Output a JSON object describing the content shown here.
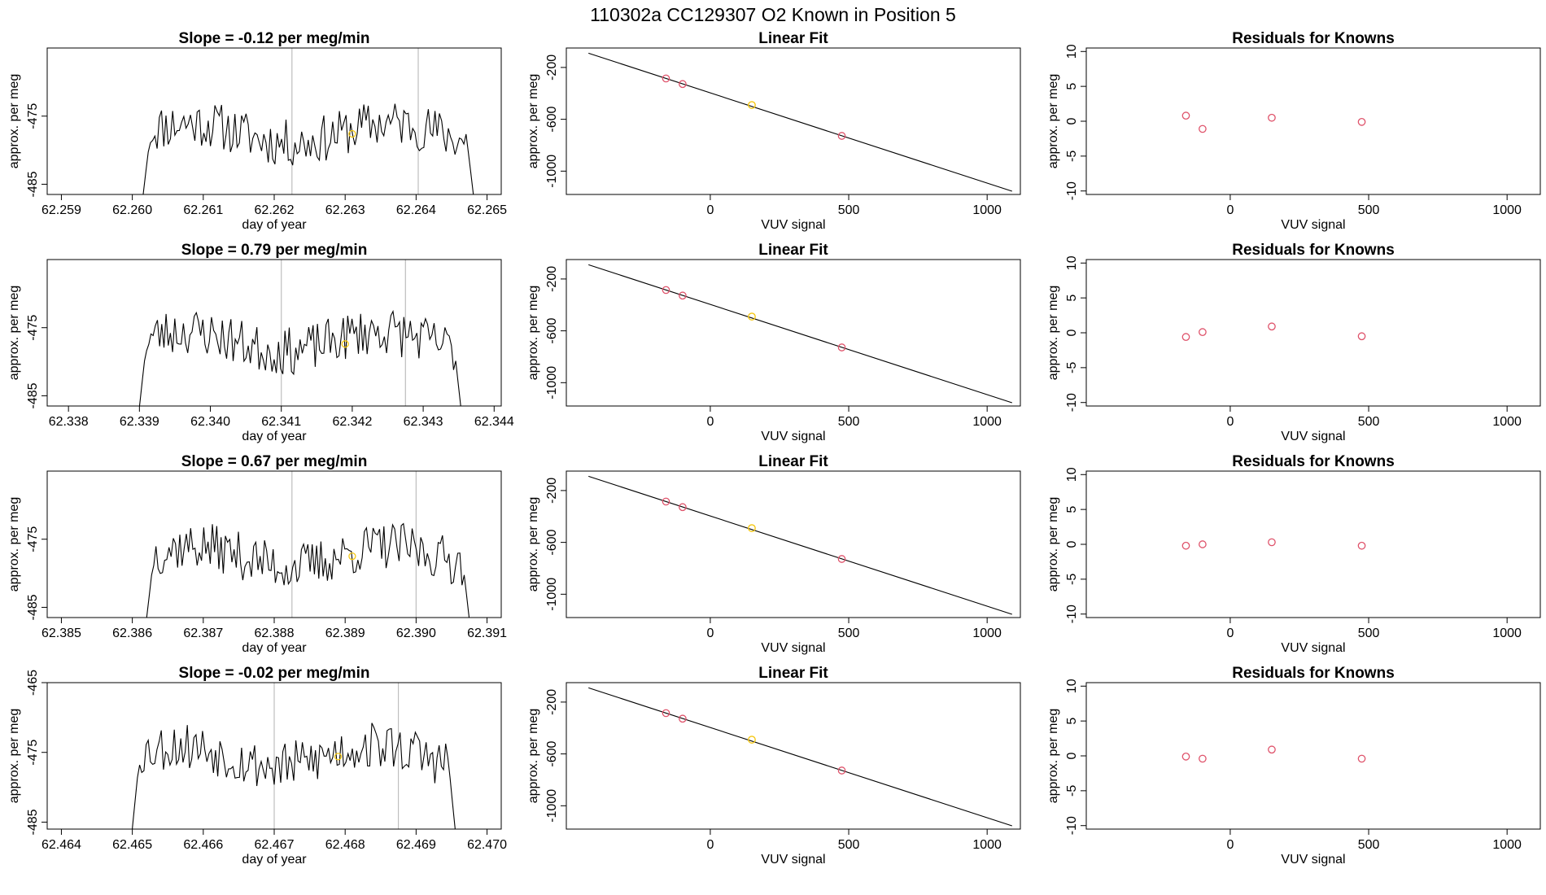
{
  "figure": {
    "title": "110302a      CC129307    O2 Known in Position  5"
  },
  "colors": {
    "line": "#000000",
    "frame": "#000000",
    "vline": "#bebebe",
    "known_point": "#df536b",
    "sample_point": "#f5c710"
  },
  "chart_data": [
    {
      "type": "line",
      "row": 1,
      "panel": "timeseries",
      "title": "Slope =  -0.12  per meg/min",
      "xlabel": "day of year",
      "ylabel": "approx. per meg",
      "xlim": [
        62.2588,
        62.2652
      ],
      "ylim": [
        -486.5,
        -465
      ],
      "xticks": [
        "62.259",
        "62.260",
        "62.261",
        "62.262",
        "62.263",
        "62.264",
        "62.265"
      ],
      "xtick_values": [
        62.259,
        62.26,
        62.261,
        62.262,
        62.263,
        62.264,
        62.265
      ],
      "yticks": [
        "-485",
        "-475"
      ],
      "ytick_values": [
        -485,
        -475
      ],
      "vlines": [
        62.26225,
        62.26403
      ],
      "series_window": [
        62.26013,
        62.26483
      ],
      "seed": 11,
      "level": -477.5,
      "marker": {
        "x": 62.2631,
        "y": -477.6
      }
    },
    {
      "type": "scatter",
      "row": 1,
      "panel": "fit",
      "title": "Linear Fit",
      "xlabel": "VUV signal",
      "ylabel": "approx. per meg",
      "xlim": [
        -520,
        1120
      ],
      "ylim": [
        -1180,
        -50
      ],
      "xticks": [
        "0",
        "500",
        "1000"
      ],
      "xtick_values": [
        0,
        500,
        1000
      ],
      "yticks": [
        "-1000",
        "-600",
        "-200"
      ],
      "ytick_values": [
        -1000,
        -600,
        -200
      ],
      "line": {
        "x": [
          -440,
          1090
        ],
        "y": [
          -90,
          -1155
        ]
      },
      "points": [
        {
          "x": -160,
          "y": -285
        },
        {
          "x": -100,
          "y": -328
        },
        {
          "x": 475,
          "y": -728
        }
      ],
      "sample": {
        "x": 150,
        "y": -490
      }
    },
    {
      "type": "scatter",
      "row": 1,
      "panel": "residuals",
      "title": "Residuals for Knowns",
      "xlabel": "VUV signal",
      "ylabel": "approx. per meg",
      "xlim": [
        -520,
        1120
      ],
      "ylim": [
        -10.5,
        10.5
      ],
      "xticks": [
        "0",
        "500",
        "1000"
      ],
      "xtick_values": [
        0,
        500,
        1000
      ],
      "yticks": [
        "-10",
        "-5",
        "0",
        "5",
        "10"
      ],
      "ytick_values": [
        -10,
        -5,
        0,
        5,
        10
      ],
      "points": [
        {
          "x": -160,
          "y": 0.8
        },
        {
          "x": -100,
          "y": -1.1
        },
        {
          "x": 150,
          "y": 0.5
        },
        {
          "x": 475,
          "y": -0.1
        }
      ]
    },
    {
      "type": "line",
      "row": 2,
      "panel": "timeseries",
      "title": "Slope =  0.79  per meg/min",
      "xlabel": "day of year",
      "ylabel": "approx. per meg",
      "xlim": [
        62.3377,
        62.3441
      ],
      "ylim": [
        -486.5,
        -465
      ],
      "xticks": [
        "62.338",
        "62.339",
        "62.340",
        "62.341",
        "62.342",
        "62.343",
        "62.344"
      ],
      "xtick_values": [
        62.338,
        62.339,
        62.34,
        62.341,
        62.342,
        62.343,
        62.344
      ],
      "yticks": [
        "-485",
        "-475"
      ],
      "ytick_values": [
        -485,
        -475
      ],
      "vlines": [
        62.341,
        62.34275
      ],
      "series_window": [
        62.33898,
        62.34355
      ],
      "seed": 23,
      "level": -477.0,
      "marker": {
        "x": 62.3419,
        "y": -477.4
      }
    },
    {
      "type": "scatter",
      "row": 2,
      "panel": "fit",
      "title": "Linear Fit",
      "xlabel": "VUV signal",
      "ylabel": "approx. per meg",
      "xlim": [
        -520,
        1120
      ],
      "ylim": [
        -1180,
        -50
      ],
      "xticks": [
        "0",
        "500",
        "1000"
      ],
      "xtick_values": [
        0,
        500,
        1000
      ],
      "yticks": [
        "-1000",
        "-600",
        "-200"
      ],
      "ytick_values": [
        -1000,
        -600,
        -200
      ],
      "line": {
        "x": [
          -440,
          1090
        ],
        "y": [
          -90,
          -1155
        ]
      },
      "points": [
        {
          "x": -160,
          "y": -285
        },
        {
          "x": -100,
          "y": -328
        },
        {
          "x": 475,
          "y": -728
        }
      ],
      "sample": {
        "x": 150,
        "y": -490
      }
    },
    {
      "type": "scatter",
      "row": 2,
      "panel": "residuals",
      "title": "Residuals for Knowns",
      "xlabel": "VUV signal",
      "ylabel": "approx. per meg",
      "xlim": [
        -520,
        1120
      ],
      "ylim": [
        -10.5,
        10.5
      ],
      "xticks": [
        "0",
        "500",
        "1000"
      ],
      "xtick_values": [
        0,
        500,
        1000
      ],
      "yticks": [
        "-10",
        "-5",
        "0",
        "5",
        "10"
      ],
      "ytick_values": [
        -10,
        -5,
        0,
        5,
        10
      ],
      "points": [
        {
          "x": -160,
          "y": -0.6
        },
        {
          "x": -100,
          "y": 0.1
        },
        {
          "x": 150,
          "y": 0.9
        },
        {
          "x": 475,
          "y": -0.5
        }
      ]
    },
    {
      "type": "line",
      "row": 3,
      "panel": "timeseries",
      "title": "Slope =  0.67  per meg/min",
      "xlabel": "day of year",
      "ylabel": "approx. per meg",
      "xlim": [
        62.3848,
        62.3912
      ],
      "ylim": [
        -486.5,
        -465
      ],
      "xticks": [
        "62.385",
        "62.386",
        "62.387",
        "62.388",
        "62.389",
        "62.390",
        "62.391"
      ],
      "xtick_values": [
        62.385,
        62.386,
        62.387,
        62.388,
        62.389,
        62.39,
        62.391
      ],
      "yticks": [
        "-485",
        "-475"
      ],
      "ytick_values": [
        -485,
        -475
      ],
      "vlines": [
        62.38825,
        62.39
      ],
      "series_window": [
        62.38618,
        62.39077
      ],
      "seed": 37,
      "level": -477.5,
      "marker": {
        "x": 62.3891,
        "y": -477.5
      }
    },
    {
      "type": "scatter",
      "row": 3,
      "panel": "fit",
      "title": "Linear Fit",
      "xlabel": "VUV signal",
      "ylabel": "approx. per meg",
      "xlim": [
        -520,
        1120
      ],
      "ylim": [
        -1180,
        -50
      ],
      "xticks": [
        "0",
        "500",
        "1000"
      ],
      "xtick_values": [
        0,
        500,
        1000
      ],
      "yticks": [
        "-1000",
        "-600",
        "-200"
      ],
      "ytick_values": [
        -1000,
        -600,
        -200
      ],
      "line": {
        "x": [
          -440,
          1090
        ],
        "y": [
          -90,
          -1155
        ]
      },
      "points": [
        {
          "x": -160,
          "y": -285
        },
        {
          "x": -100,
          "y": -328
        },
        {
          "x": 475,
          "y": -728
        }
      ],
      "sample": {
        "x": 150,
        "y": -490
      }
    },
    {
      "type": "scatter",
      "row": 3,
      "panel": "residuals",
      "title": "Residuals for Knowns",
      "xlabel": "VUV signal",
      "ylabel": "approx. per meg",
      "xlim": [
        -520,
        1120
      ],
      "ylim": [
        -10.5,
        10.5
      ],
      "xticks": [
        "0",
        "500",
        "1000"
      ],
      "xtick_values": [
        0,
        500,
        1000
      ],
      "yticks": [
        "-10",
        "-5",
        "0",
        "5",
        "10"
      ],
      "ytick_values": [
        -10,
        -5,
        0,
        5,
        10
      ],
      "points": [
        {
          "x": -160,
          "y": -0.2
        },
        {
          "x": -100,
          "y": 0.0
        },
        {
          "x": 150,
          "y": 0.3
        },
        {
          "x": 475,
          "y": -0.2
        }
      ]
    },
    {
      "type": "line",
      "row": 4,
      "panel": "timeseries",
      "title": "Slope =  -0.02  per meg/min",
      "xlabel": "day of year",
      "ylabel": "approx. per meg",
      "xlim": [
        62.4638,
        62.4702
      ],
      "ylim": [
        -486,
        -465
      ],
      "xticks": [
        "62.464",
        "62.465",
        "62.466",
        "62.467",
        "62.468",
        "62.469",
        "62.470"
      ],
      "xtick_values": [
        62.464,
        62.465,
        62.466,
        62.467,
        62.468,
        62.469,
        62.47
      ],
      "yticks": [
        "-485",
        "-475",
        "-465"
      ],
      "ytick_values": [
        -485,
        -475,
        -465
      ],
      "vlines": [
        62.467,
        62.46875
      ],
      "series_window": [
        62.46498,
        62.46957
      ],
      "seed": 53,
      "level": -475.5,
      "marker": {
        "x": 62.4679,
        "y": -475.6
      }
    },
    {
      "type": "scatter",
      "row": 4,
      "panel": "fit",
      "title": "Linear Fit",
      "xlabel": "VUV signal",
      "ylabel": "approx. per meg",
      "xlim": [
        -520,
        1120
      ],
      "ylim": [
        -1180,
        -50
      ],
      "xticks": [
        "0",
        "500",
        "1000"
      ],
      "xtick_values": [
        0,
        500,
        1000
      ],
      "yticks": [
        "-1000",
        "-600",
        "-200"
      ],
      "ytick_values": [
        -1000,
        -600,
        -200
      ],
      "line": {
        "x": [
          -440,
          1090
        ],
        "y": [
          -90,
          -1155
        ]
      },
      "points": [
        {
          "x": -160,
          "y": -285
        },
        {
          "x": -100,
          "y": -328
        },
        {
          "x": 475,
          "y": -728
        }
      ],
      "sample": {
        "x": 150,
        "y": -490
      }
    },
    {
      "type": "scatter",
      "row": 4,
      "panel": "residuals",
      "title": "Residuals for Knowns",
      "xlabel": "VUV signal",
      "ylabel": "approx. per meg",
      "xlim": [
        -520,
        1120
      ],
      "ylim": [
        -10.5,
        10.5
      ],
      "xticks": [
        "0",
        "500",
        "1000"
      ],
      "xtick_values": [
        0,
        500,
        1000
      ],
      "yticks": [
        "-10",
        "-5",
        "0",
        "5",
        "10"
      ],
      "ytick_values": [
        -10,
        -5,
        0,
        5,
        10
      ],
      "points": [
        {
          "x": -160,
          "y": -0.1
        },
        {
          "x": -100,
          "y": -0.4
        },
        {
          "x": 150,
          "y": 0.9
        },
        {
          "x": 475,
          "y": -0.4
        }
      ]
    }
  ]
}
